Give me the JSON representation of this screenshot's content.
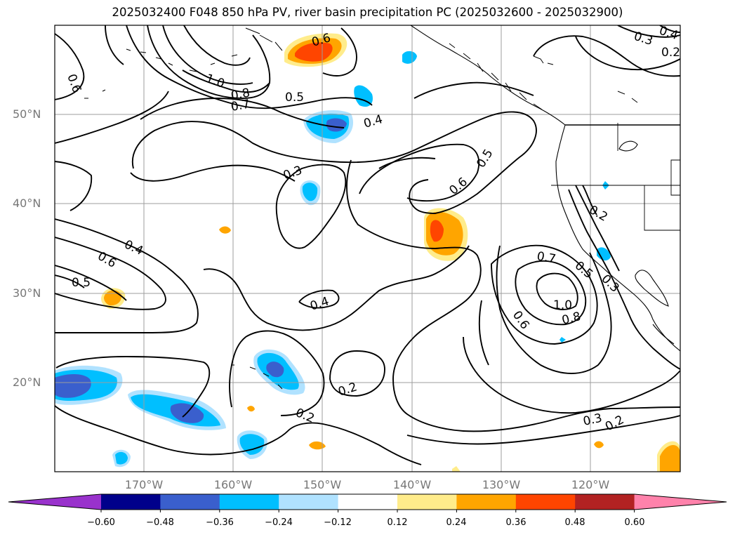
{
  "title": "2025032400 F048 850 hPa PV, river basin precipitation PC (2025032600 - 2025032900)",
  "lat_labels": [
    "50°N",
    "40°N",
    "30°N",
    "20°N"
  ],
  "lon_labels": [
    "170°W",
    "160°W",
    "150°W",
    "140°W",
    "130°W",
    "120°W"
  ],
  "colorbar": {
    "ticks": [
      "−0.60",
      "−0.48",
      "−0.36",
      "−0.24",
      "−0.12",
      "0.12",
      "0.24",
      "0.36",
      "0.48",
      "0.60"
    ],
    "colors": [
      "#9932cc",
      "#00008b",
      "#3a5fcd",
      "#00bfff",
      "#b0e2ff",
      "#ffffff",
      "#ffec8b",
      "#ffa500",
      "#ff4500",
      "#b22222",
      "#ff82ab"
    ]
  },
  "contour_labels": [
    "0.6",
    "0.6",
    "1.0",
    "0.8",
    "0.7",
    "0.5",
    "0.4",
    "0.3",
    "0.5",
    "0.6",
    "0.4",
    "0.6",
    "0.5",
    "0.4",
    "0.2",
    "0.7",
    "0.5",
    "0.3",
    "1.0",
    "0.8",
    "0.6",
    "0.2",
    "0.2",
    "0.3",
    "0.2",
    "0.3",
    "0.2",
    "0.4"
  ]
}
